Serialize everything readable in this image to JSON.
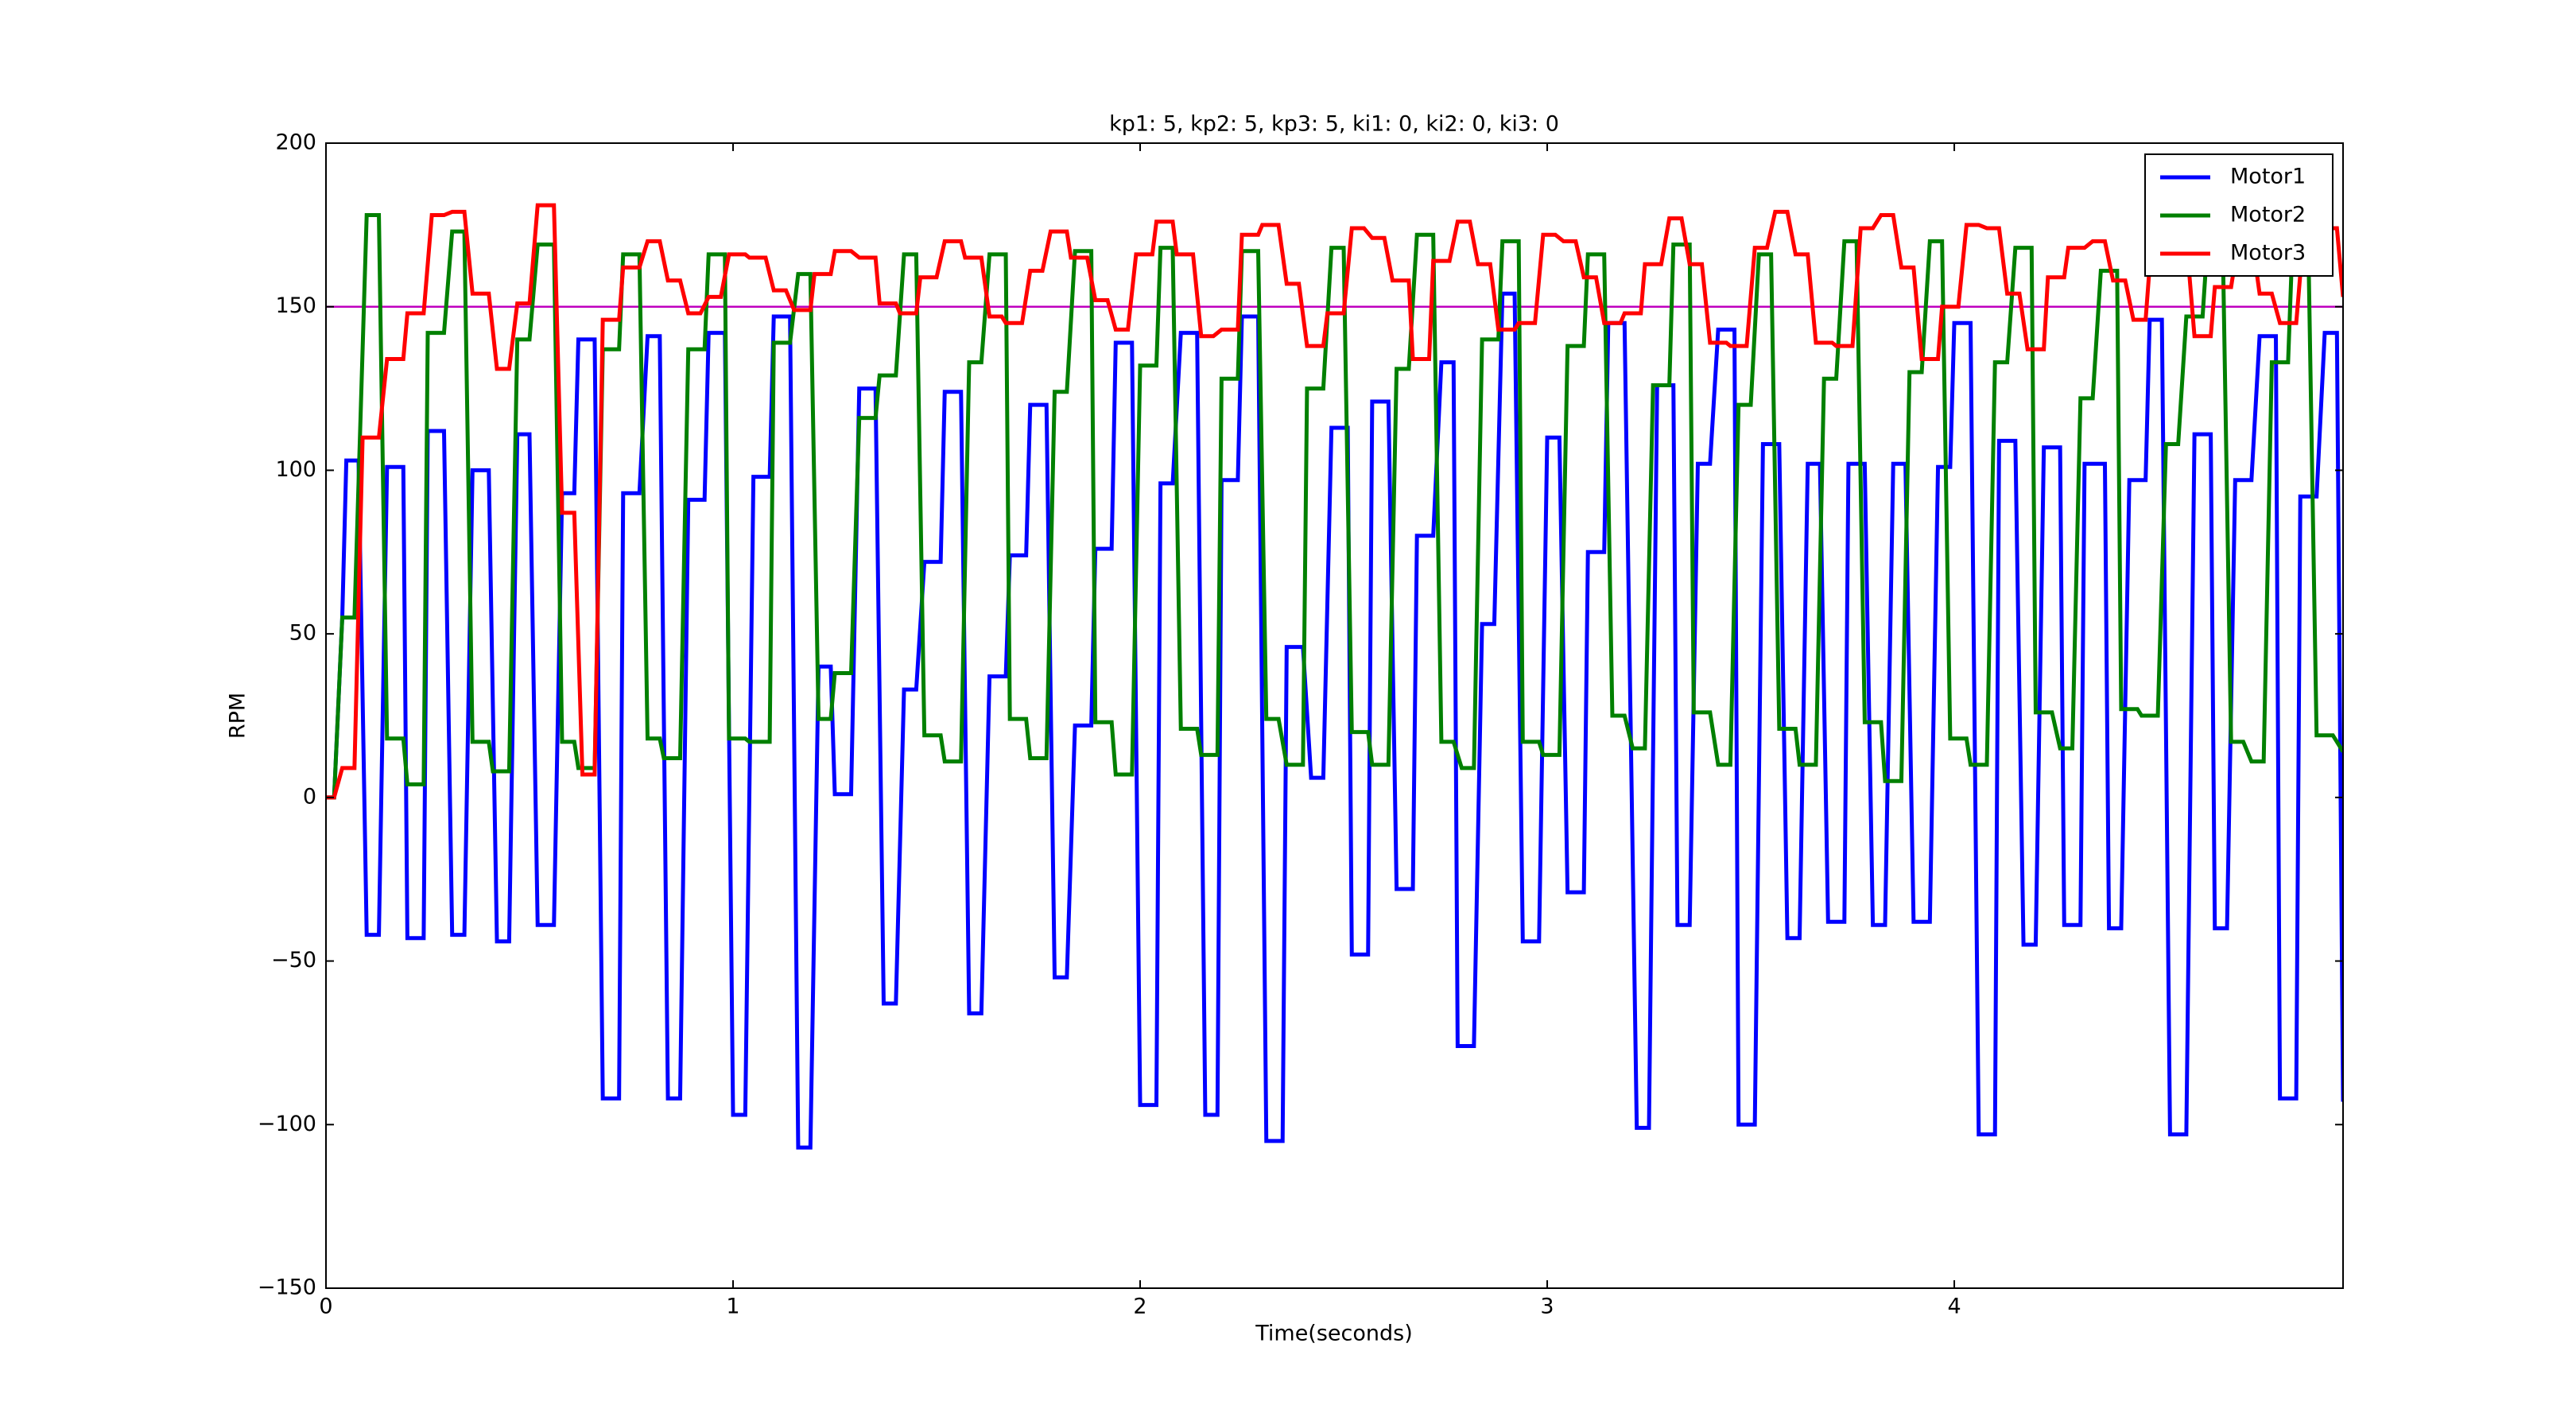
{
  "chart_data": {
    "type": "line",
    "title": "kp1: 5, kp2: 5, kp3: 5, ki1: 0, ki2: 0, ki3: 0",
    "x_label": "Time(seconds)",
    "y_label": "RPM",
    "xlim": [
      0,
      4.955
    ],
    "ylim": [
      -150,
      200
    ],
    "xticks": [
      0,
      1,
      2,
      3,
      4
    ],
    "yticks": [
      {
        "value": -150,
        "label": "−150"
      },
      {
        "value": -100,
        "label": "−100"
      },
      {
        "value": -50,
        "label": "−50"
      },
      0,
      50,
      100,
      150,
      200
    ],
    "grid": false,
    "legend": "upper right",
    "hline": {
      "value": 150,
      "color": "#bf00bf"
    },
    "series": [
      {
        "name": "Motor1",
        "color": "#0000ff",
        "x": [
          0,
          0.02,
          0.04,
          0.05,
          0.08,
          0.1,
          0.13,
          0.15,
          0.19,
          0.2,
          0.24,
          0.25,
          0.29,
          0.31,
          0.34,
          0.36,
          0.4,
          0.42,
          0.45,
          0.47,
          0.5,
          0.52,
          0.56,
          0.58,
          0.61,
          0.62,
          0.66,
          0.68,
          0.72,
          0.73,
          0.77,
          0.79,
          0.82,
          0.84,
          0.87,
          0.89,
          0.93,
          0.94,
          0.98,
          1.0,
          1.03,
          1.05,
          1.09,
          1.1,
          1.14,
          1.16,
          1.19,
          1.21,
          1.24,
          1.25,
          1.29,
          1.31,
          1.35,
          1.37,
          1.4,
          1.42,
          1.45,
          1.47,
          1.51,
          1.52,
          1.56,
          1.58,
          1.61,
          1.63,
          1.67,
          1.68,
          1.72,
          1.73,
          1.77,
          1.79,
          1.82,
          1.84,
          1.88,
          1.89,
          1.93,
          1.94,
          1.98,
          2.0,
          2.04,
          2.05,
          2.08,
          2.1,
          2.14,
          2.16,
          2.19,
          2.2,
          2.24,
          2.25,
          2.29,
          2.31,
          2.35,
          2.36,
          2.4,
          2.42,
          2.45,
          2.47,
          2.51,
          2.52,
          2.56,
          2.57,
          2.61,
          2.63,
          2.67,
          2.68,
          2.72,
          2.74,
          2.77,
          2.78,
          2.82,
          2.84,
          2.87,
          2.89,
          2.92,
          2.94,
          2.98,
          3.0,
          3.03,
          3.05,
          3.09,
          3.1,
          3.14,
          3.15,
          3.19,
          3.22,
          3.25,
          3.27,
          3.31,
          3.32,
          3.35,
          3.37,
          3.4,
          3.42,
          3.46,
          3.47,
          3.51,
          3.53,
          3.57,
          3.59,
          3.62,
          3.64,
          3.67,
          3.69,
          3.73,
          3.74,
          3.78,
          3.8,
          3.83,
          3.85,
          3.88,
          3.9,
          3.94,
          3.96,
          3.99,
          4.0,
          4.04,
          4.06,
          4.1,
          4.11,
          4.15,
          4.17,
          4.2,
          4.22,
          4.26,
          4.27,
          4.31,
          4.32,
          4.37,
          4.38,
          4.41,
          4.43,
          4.47,
          4.48,
          4.51,
          4.53,
          4.57,
          4.59,
          4.63,
          4.64,
          4.67,
          4.69,
          4.73,
          4.75,
          4.79,
          4.8,
          4.84,
          4.85,
          4.89,
          4.91,
          4.94,
          4.955
        ],
        "values": [
          0,
          0,
          55,
          103,
          103,
          -42,
          -42,
          101,
          101,
          -43,
          -43,
          112,
          112,
          -42,
          -42,
          100,
          100,
          -44,
          -44,
          111,
          111,
          -39,
          -39,
          93,
          93,
          140,
          140,
          -92,
          -92,
          93,
          93,
          141,
          141,
          -92,
          -92,
          91,
          91,
          142,
          142,
          -97,
          -97,
          98,
          98,
          147,
          147,
          -107,
          -107,
          40,
          40,
          1,
          1,
          125,
          125,
          -63,
          -63,
          33,
          33,
          72,
          72,
          124,
          124,
          -66,
          -66,
          37,
          37,
          74,
          74,
          120,
          120,
          -55,
          -55,
          22,
          22,
          76,
          76,
          139,
          139,
          -94,
          -94,
          96,
          96,
          142,
          142,
          -97,
          -97,
          97,
          97,
          147,
          147,
          -105,
          -105,
          46,
          46,
          6,
          6,
          113,
          113,
          -48,
          -48,
          121,
          121,
          -28,
          -28,
          80,
          80,
          133,
          133,
          -76,
          -76,
          53,
          53,
          154,
          154,
          -44,
          -44,
          110,
          110,
          -29,
          -29,
          75,
          75,
          145,
          145,
          -101,
          -101,
          126,
          126,
          -39,
          -39,
          102,
          102,
          143,
          143,
          -100,
          -100,
          108,
          108,
          -43,
          -43,
          102,
          102,
          -38,
          -38,
          102,
          102,
          -39,
          -39,
          102,
          102,
          -38,
          -38,
          101,
          101,
          145,
          145,
          -103,
          -103,
          109,
          109,
          -45,
          -45,
          107,
          107,
          -39,
          -39,
          102,
          102,
          -40,
          -40,
          97,
          97,
          146,
          146,
          -103,
          -103,
          111,
          111,
          -40,
          -40,
          97,
          97,
          141,
          141,
          -92,
          -92,
          92,
          92,
          142,
          142,
          -93
        ]
      },
      {
        "name": "Motor2",
        "color": "#008000",
        "x": [
          0,
          0.02,
          0.04,
          0.07,
          0.1,
          0.13,
          0.15,
          0.19,
          0.2,
          0.24,
          0.25,
          0.29,
          0.31,
          0.34,
          0.36,
          0.4,
          0.41,
          0.45,
          0.47,
          0.5,
          0.52,
          0.56,
          0.58,
          0.61,
          0.62,
          0.66,
          0.68,
          0.72,
          0.73,
          0.77,
          0.79,
          0.82,
          0.83,
          0.87,
          0.89,
          0.93,
          0.94,
          0.98,
          0.99,
          1.03,
          1.04,
          1.09,
          1.1,
          1.14,
          1.16,
          1.19,
          1.21,
          1.24,
          1.25,
          1.29,
          1.31,
          1.35,
          1.36,
          1.4,
          1.42,
          1.45,
          1.47,
          1.51,
          1.52,
          1.56,
          1.58,
          1.61,
          1.63,
          1.67,
          1.68,
          1.72,
          1.73,
          1.77,
          1.79,
          1.82,
          1.84,
          1.88,
          1.89,
          1.93,
          1.94,
          1.98,
          2.0,
          2.04,
          2.05,
          2.08,
          2.1,
          2.14,
          2.15,
          2.19,
          2.2,
          2.24,
          2.25,
          2.29,
          2.31,
          2.34,
          2.36,
          2.4,
          2.41,
          2.45,
          2.47,
          2.5,
          2.52,
          2.56,
          2.57,
          2.61,
          2.63,
          2.66,
          2.68,
          2.72,
          2.74,
          2.77,
          2.79,
          2.82,
          2.84,
          2.88,
          2.89,
          2.93,
          2.94,
          2.98,
          2.99,
          3.03,
          3.05,
          3.09,
          3.1,
          3.14,
          3.16,
          3.19,
          3.21,
          3.24,
          3.26,
          3.3,
          3.31,
          3.35,
          3.36,
          3.4,
          3.42,
          3.45,
          3.47,
          3.5,
          3.52,
          3.55,
          3.57,
          3.61,
          3.62,
          3.66,
          3.68,
          3.71,
          3.73,
          3.76,
          3.78,
          3.82,
          3.83,
          3.87,
          3.89,
          3.92,
          3.94,
          3.97,
          3.99,
          4.03,
          4.04,
          4.08,
          4.1,
          4.13,
          4.15,
          4.19,
          4.2,
          4.24,
          4.26,
          4.29,
          4.31,
          4.34,
          4.36,
          4.4,
          4.41,
          4.45,
          4.46,
          4.5,
          4.52,
          4.55,
          4.57,
          4.61,
          4.62,
          4.66,
          4.68,
          4.71,
          4.73,
          4.76,
          4.78,
          4.82,
          4.83,
          4.87,
          4.89,
          4.93,
          4.955
        ],
        "values": [
          0,
          0,
          55,
          55,
          178,
          178,
          18,
          18,
          4,
          4,
          142,
          142,
          173,
          173,
          17,
          17,
          8,
          8,
          140,
          140,
          169,
          169,
          17,
          17,
          9,
          9,
          137,
          137,
          166,
          166,
          18,
          18,
          12,
          12,
          137,
          137,
          166,
          166,
          18,
          18,
          17,
          17,
          139,
          139,
          160,
          160,
          24,
          24,
          38,
          38,
          116,
          116,
          129,
          129,
          166,
          166,
          19,
          19,
          11,
          11,
          133,
          133,
          166,
          166,
          24,
          24,
          12,
          12,
          124,
          124,
          167,
          167,
          23,
          23,
          7,
          7,
          132,
          132,
          168,
          168,
          21,
          21,
          13,
          13,
          128,
          128,
          167,
          167,
          24,
          24,
          10,
          10,
          125,
          125,
          168,
          168,
          20,
          20,
          10,
          10,
          131,
          131,
          172,
          172,
          17,
          17,
          9,
          9,
          140,
          140,
          170,
          170,
          17,
          17,
          13,
          13,
          138,
          138,
          166,
          166,
          25,
          25,
          15,
          15,
          126,
          126,
          169,
          169,
          26,
          26,
          10,
          10,
          120,
          120,
          166,
          166,
          21,
          21,
          10,
          10,
          128,
          128,
          170,
          170,
          23,
          23,
          5,
          5,
          130,
          130,
          170,
          170,
          18,
          18,
          10,
          10,
          133,
          133,
          168,
          168,
          26,
          26,
          15,
          15,
          122,
          122,
          161,
          161,
          27,
          27,
          25,
          25,
          108,
          108,
          147,
          147,
          166,
          166,
          17,
          17,
          11,
          11,
          133,
          133,
          167,
          167,
          19,
          19,
          14
        ]
      },
      {
        "name": "Motor3",
        "color": "#ff0000",
        "x": [
          0,
          0.02,
          0.04,
          0.07,
          0.09,
          0.13,
          0.15,
          0.19,
          0.2,
          0.24,
          0.26,
          0.29,
          0.31,
          0.34,
          0.36,
          0.4,
          0.42,
          0.45,
          0.47,
          0.5,
          0.52,
          0.56,
          0.58,
          0.61,
          0.63,
          0.66,
          0.68,
          0.72,
          0.73,
          0.77,
          0.79,
          0.82,
          0.84,
          0.87,
          0.89,
          0.92,
          0.94,
          0.97,
          0.99,
          1.03,
          1.04,
          1.08,
          1.1,
          1.13,
          1.15,
          1.19,
          1.2,
          1.24,
          1.25,
          1.29,
          1.31,
          1.35,
          1.36,
          1.4,
          1.41,
          1.45,
          1.46,
          1.5,
          1.52,
          1.56,
          1.57,
          1.61,
          1.63,
          1.66,
          1.67,
          1.71,
          1.73,
          1.76,
          1.78,
          1.82,
          1.83,
          1.87,
          1.89,
          1.92,
          1.94,
          1.97,
          1.99,
          2.03,
          2.04,
          2.08,
          2.09,
          2.13,
          2.15,
          2.18,
          2.2,
          2.24,
          2.25,
          2.29,
          2.3,
          2.34,
          2.36,
          2.39,
          2.41,
          2.45,
          2.46,
          2.5,
          2.52,
          2.55,
          2.57,
          2.6,
          2.62,
          2.66,
          2.67,
          2.71,
          2.72,
          2.76,
          2.78,
          2.81,
          2.83,
          2.86,
          2.88,
          2.92,
          2.93,
          2.97,
          2.99,
          3.02,
          3.04,
          3.07,
          3.09,
          3.12,
          3.14,
          3.18,
          3.19,
          3.23,
          3.24,
          3.28,
          3.3,
          3.33,
          3.35,
          3.38,
          3.4,
          3.44,
          3.45,
          3.49,
          3.51,
          3.54,
          3.56,
          3.59,
          3.61,
          3.64,
          3.66,
          3.7,
          3.71,
          3.75,
          3.77,
          3.8,
          3.82,
          3.85,
          3.87,
          3.9,
          3.92,
          3.96,
          3.97,
          4.01,
          4.03,
          4.06,
          4.08,
          4.11,
          4.13,
          4.16,
          4.18,
          4.22,
          4.23,
          4.27,
          4.28,
          4.32,
          4.34,
          4.37,
          4.39,
          4.42,
          4.44,
          4.47,
          4.49,
          4.52,
          4.54,
          4.57,
          4.59,
          4.63,
          4.64,
          4.68,
          4.7,
          4.73,
          4.75,
          4.78,
          4.8,
          4.84,
          4.85,
          4.89,
          4.91,
          4.94,
          4.955
        ],
        "values": [
          0,
          0,
          9,
          9,
          110,
          110,
          134,
          134,
          148,
          148,
          178,
          178,
          179,
          179,
          154,
          154,
          131,
          131,
          151,
          151,
          181,
          181,
          87,
          87,
          7,
          7,
          146,
          146,
          162,
          162,
          170,
          170,
          158,
          158,
          148,
          148,
          153,
          153,
          166,
          166,
          165,
          165,
          155,
          155,
          149,
          149,
          160,
          160,
          167,
          167,
          165,
          165,
          151,
          151,
          148,
          148,
          159,
          159,
          170,
          170,
          165,
          165,
          147,
          147,
          145,
          145,
          161,
          161,
          173,
          173,
          165,
          165,
          152,
          152,
          143,
          143,
          166,
          166,
          176,
          176,
          166,
          166,
          141,
          141,
          143,
          143,
          172,
          172,
          175,
          175,
          157,
          157,
          138,
          138,
          148,
          148,
          174,
          174,
          171,
          171,
          158,
          158,
          134,
          134,
          164,
          164,
          176,
          176,
          163,
          163,
          143,
          143,
          145,
          145,
          172,
          172,
          170,
          170,
          159,
          159,
          145,
          145,
          148,
          148,
          163,
          163,
          177,
          177,
          163,
          163,
          139,
          139,
          138,
          138,
          168,
          168,
          179,
          179,
          166,
          166,
          139,
          139,
          138,
          138,
          174,
          174,
          178,
          178,
          162,
          162,
          134,
          134,
          150,
          150,
          175,
          175,
          174,
          174,
          154,
          154,
          137,
          137,
          159,
          159,
          168,
          168,
          170,
          170,
          158,
          158,
          146,
          146,
          179,
          179,
          171,
          171,
          141,
          141,
          156,
          156,
          172,
          172,
          154,
          154,
          145,
          145,
          160,
          160,
          174,
          174,
          153
        ]
      }
    ]
  }
}
